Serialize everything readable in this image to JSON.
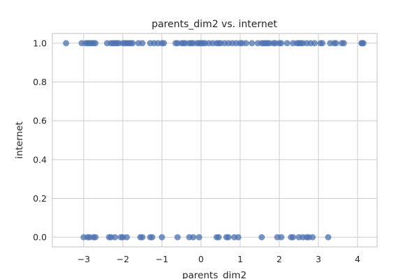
{
  "chart_data": {
    "type": "scatter",
    "title": "parents_dim2 vs. internet",
    "xlabel": "parents_dim2",
    "ylabel": "internet",
    "xlim": [
      -3.8,
      4.5
    ],
    "ylim": [
      -0.05,
      1.05
    ],
    "xticks": [
      -3,
      -2,
      -1,
      0,
      1,
      2,
      3,
      4
    ],
    "yticks": [
      0.0,
      0.2,
      0.4,
      0.6,
      0.8,
      1.0
    ],
    "xtick_labels": [
      "−3",
      "−2",
      "−1",
      "0",
      "1",
      "2",
      "3",
      "4"
    ],
    "ytick_labels": [
      "0.0",
      "0.2",
      "0.4",
      "0.6",
      "0.8",
      "1.0"
    ],
    "grid": true,
    "color": "#4c72b0",
    "series": [
      {
        "y": 1,
        "x": [
          -3.45,
          -3.05,
          -2.95,
          -2.9,
          -2.85,
          -2.8,
          -2.75,
          -2.7,
          -2.4,
          -2.3,
          -2.25,
          -2.2,
          -2.15,
          -2.1,
          -2.0,
          -1.95,
          -1.9,
          -1.85,
          -1.8,
          -1.75,
          -1.6,
          -1.5,
          -1.3,
          -1.2,
          -1.1,
          -1.0,
          -0.95,
          -0.65,
          -0.6,
          -0.5,
          -0.45,
          -0.4,
          -0.3,
          -0.25,
          -0.2,
          -0.1,
          -0.05,
          0.0,
          0.05,
          0.1,
          0.2,
          0.3,
          0.4,
          0.45,
          0.5,
          0.6,
          0.7,
          0.8,
          0.9,
          1.0,
          1.05,
          1.15,
          1.3,
          1.45,
          1.55,
          1.6,
          1.65,
          1.7,
          1.75,
          1.85,
          1.9,
          2.0,
          2.05,
          2.2,
          2.35,
          2.45,
          2.5,
          2.55,
          2.6,
          2.7,
          2.8,
          2.9,
          3.05,
          3.1,
          3.3,
          3.4,
          3.45,
          3.6,
          3.65,
          4.1,
          4.12,
          4.15
        ]
      },
      {
        "y": 0,
        "x": [
          -3.0,
          -2.9,
          -2.85,
          -2.75,
          -2.7,
          -2.35,
          -2.3,
          -2.2,
          -2.05,
          -2.0,
          -1.9,
          -1.55,
          -1.5,
          -1.3,
          -1.25,
          -1.0,
          -0.6,
          -0.3,
          -0.2,
          -0.05,
          0.4,
          0.45,
          0.65,
          0.7,
          0.85,
          0.95,
          1.55,
          1.95,
          2.05,
          2.3,
          2.35,
          2.5,
          2.6,
          2.7,
          2.75,
          2.85,
          3.25
        ]
      }
    ]
  }
}
